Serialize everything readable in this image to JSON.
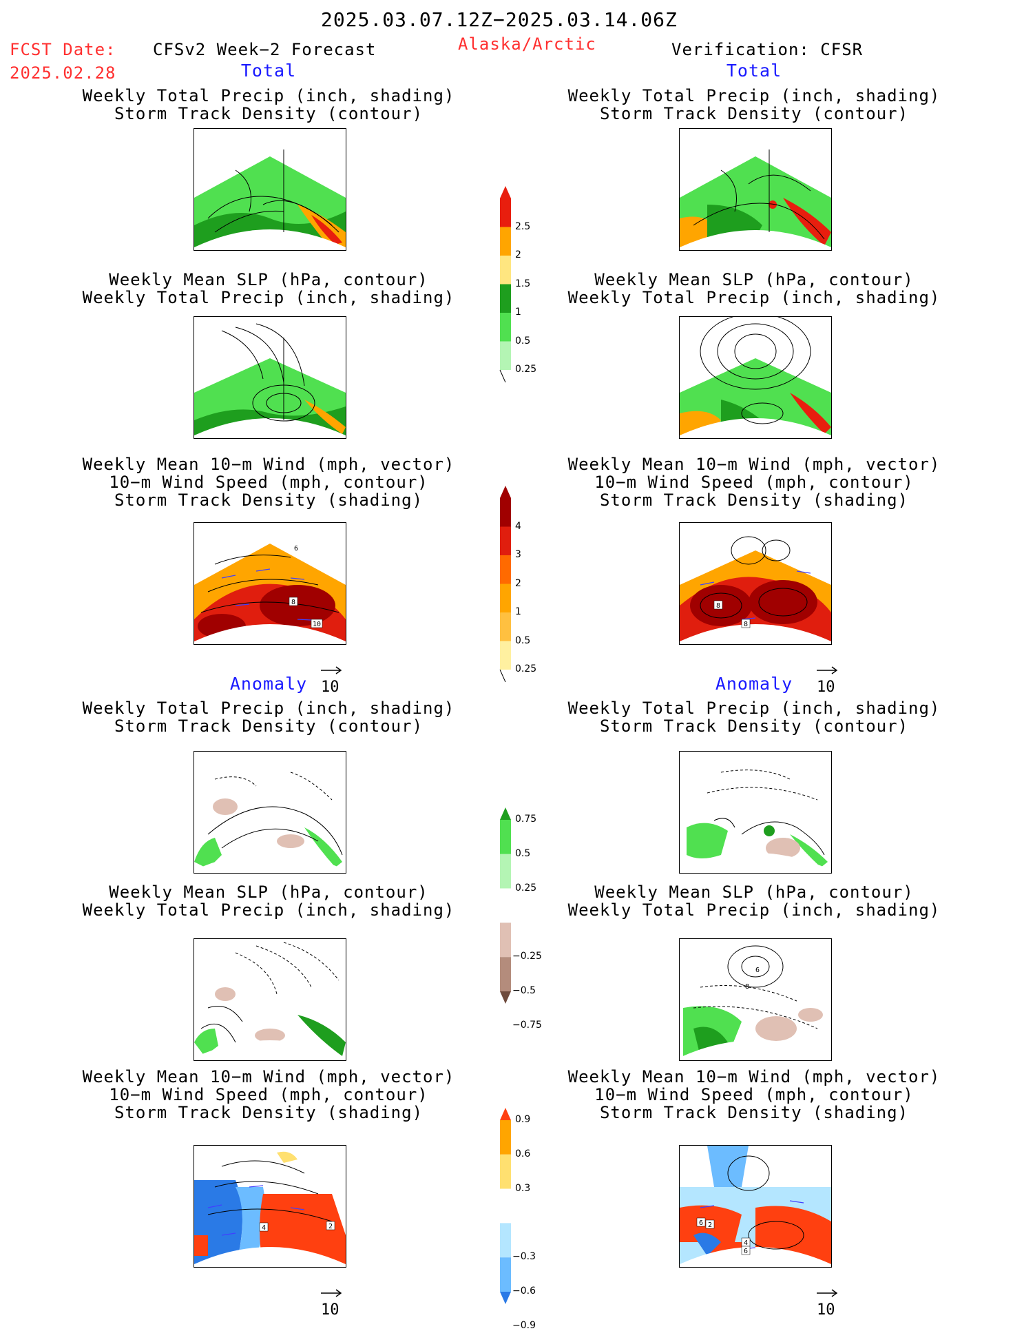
{
  "header": {
    "date_range": "2025.03.07.12Z−2025.03.14.06Z",
    "fcst_label": "FCST Date:",
    "fcst_date": "2025.02.28",
    "model": "CFSv2 Week−2 Forecast",
    "region": "Alaska/Arctic",
    "verification": "Verification: CFSR"
  },
  "sections": {
    "total": "Total",
    "anomaly": "Anomaly"
  },
  "panel_titles": {
    "precip_storm": [
      "Weekly Total Precip (inch, shading)",
      "Storm Track Density (contour)"
    ],
    "slp_precip": [
      "Weekly Mean SLP (hPa, contour)",
      "Weekly Total Precip (inch, shading)"
    ],
    "wind_storm": [
      "Weekly Mean 10−m Wind (mph, vector)",
      "10−m Wind Speed (mph, contour)",
      "Storm Track Density (shading)"
    ]
  },
  "vector_reference": "10",
  "map_labels": {
    "fcst_total_wind": [
      "6",
      "8",
      "10"
    ],
    "cfsr_total_wind": [
      "8",
      "8"
    ],
    "fcst_anom_wind": [
      "4",
      "2"
    ],
    "cfsr_anom_wind": [
      "6",
      "2",
      "4",
      "6"
    ],
    "cfsr_anom_slp": [
      "6",
      "8"
    ]
  },
  "colorbars": {
    "total_precip": {
      "labels": [
        "2.5",
        "2",
        "1.5",
        "1",
        "0.5",
        "0.25"
      ],
      "colors": [
        "#e81e0e",
        "#ffa500",
        "#ffe680",
        "#1e9e1e",
        "#50e050",
        "#b4f5b4"
      ]
    },
    "total_storm": {
      "labels": [
        "4",
        "3",
        "2",
        "1",
        "0.5",
        "0.25"
      ],
      "colors": [
        "#a00000",
        "#e01e0e",
        "#ff6a00",
        "#ffa500",
        "#ffc040",
        "#fff0a0"
      ]
    },
    "anom_precip": {
      "labels": [
        "0.75",
        "0.5",
        "0.25",
        "−0.25",
        "−0.5",
        "−0.75"
      ],
      "colors": [
        "#1e9e1e",
        "#50e050",
        "#b4f5b4",
        "#ffffff",
        "#e0c0b4",
        "#b48c7c",
        "#6e4a3c"
      ]
    },
    "anom_storm": {
      "labels": [
        "0.9",
        "0.6",
        "0.3",
        "−0.3",
        "−0.6",
        "−0.9"
      ],
      "colors": [
        "#ff4010",
        "#ffa500",
        "#ffe070",
        "#ffffff",
        "#b4e6ff",
        "#6cbcff",
        "#2a7ae6"
      ]
    }
  }
}
